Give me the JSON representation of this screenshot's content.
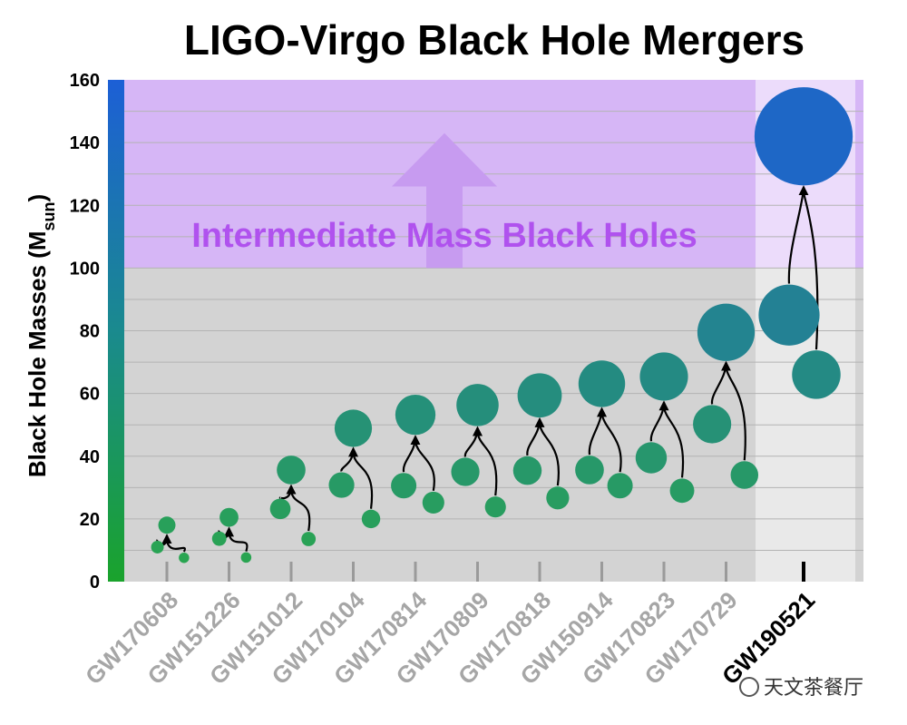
{
  "chart_data": {
    "type": "scatter",
    "title": "LIGO-Virgo Black Hole Mergers",
    "ylabel": "Black Hole Masses (M",
    "ylabel_sub": "sun",
    "ylabel_close": ")",
    "ylim": [
      0,
      160
    ],
    "yticks": [
      0,
      20,
      40,
      60,
      80,
      100,
      120,
      140,
      160
    ],
    "grid": true,
    "region_label": "Intermediate Mass Black Holes",
    "region_threshold": 100,
    "categories": [
      "GW170608",
      "GW151226",
      "GW151012",
      "GW170104",
      "GW170814",
      "GW170809",
      "GW170818",
      "GW150914",
      "GW170823",
      "GW170729",
      "GW190521"
    ],
    "highlighted": "GW190521",
    "events": [
      {
        "name": "GW170608",
        "m1": 11,
        "m2": 7.6,
        "final": 18
      },
      {
        "name": "GW151226",
        "m1": 13.7,
        "m2": 7.7,
        "final": 20.5
      },
      {
        "name": "GW151012",
        "m1": 23.2,
        "m2": 13.6,
        "final": 35.6
      },
      {
        "name": "GW170104",
        "m1": 30.8,
        "m2": 20,
        "final": 48.9
      },
      {
        "name": "GW170814",
        "m1": 30.6,
        "m2": 25.2,
        "final": 53.2
      },
      {
        "name": "GW170809",
        "m1": 35,
        "m2": 23.8,
        "final": 56.3
      },
      {
        "name": "GW170818",
        "m1": 35.4,
        "m2": 26.7,
        "final": 59.4
      },
      {
        "name": "GW150914",
        "m1": 35.6,
        "m2": 30.6,
        "final": 63.1
      },
      {
        "name": "GW170823",
        "m1": 39.5,
        "m2": 29,
        "final": 65.4
      },
      {
        "name": "GW170729",
        "m1": 50.2,
        "m2": 34,
        "final": 79.5
      },
      {
        "name": "GW190521",
        "m1": 85,
        "m2": 66,
        "final": 142
      }
    ],
    "colors": {
      "stellar_region": "#d3d3d3",
      "imbh_region": "#d6b6f6",
      "imbh_text": "#b052ee",
      "arrow_fill": "#c79bf0",
      "highlight_band": "#e9e9e9",
      "highlight_band_top": "#ecdcfb",
      "dot_low": "#2aa84a",
      "dot_high": "#1c5fd6"
    }
  },
  "watermark": "天文茶餐厅"
}
